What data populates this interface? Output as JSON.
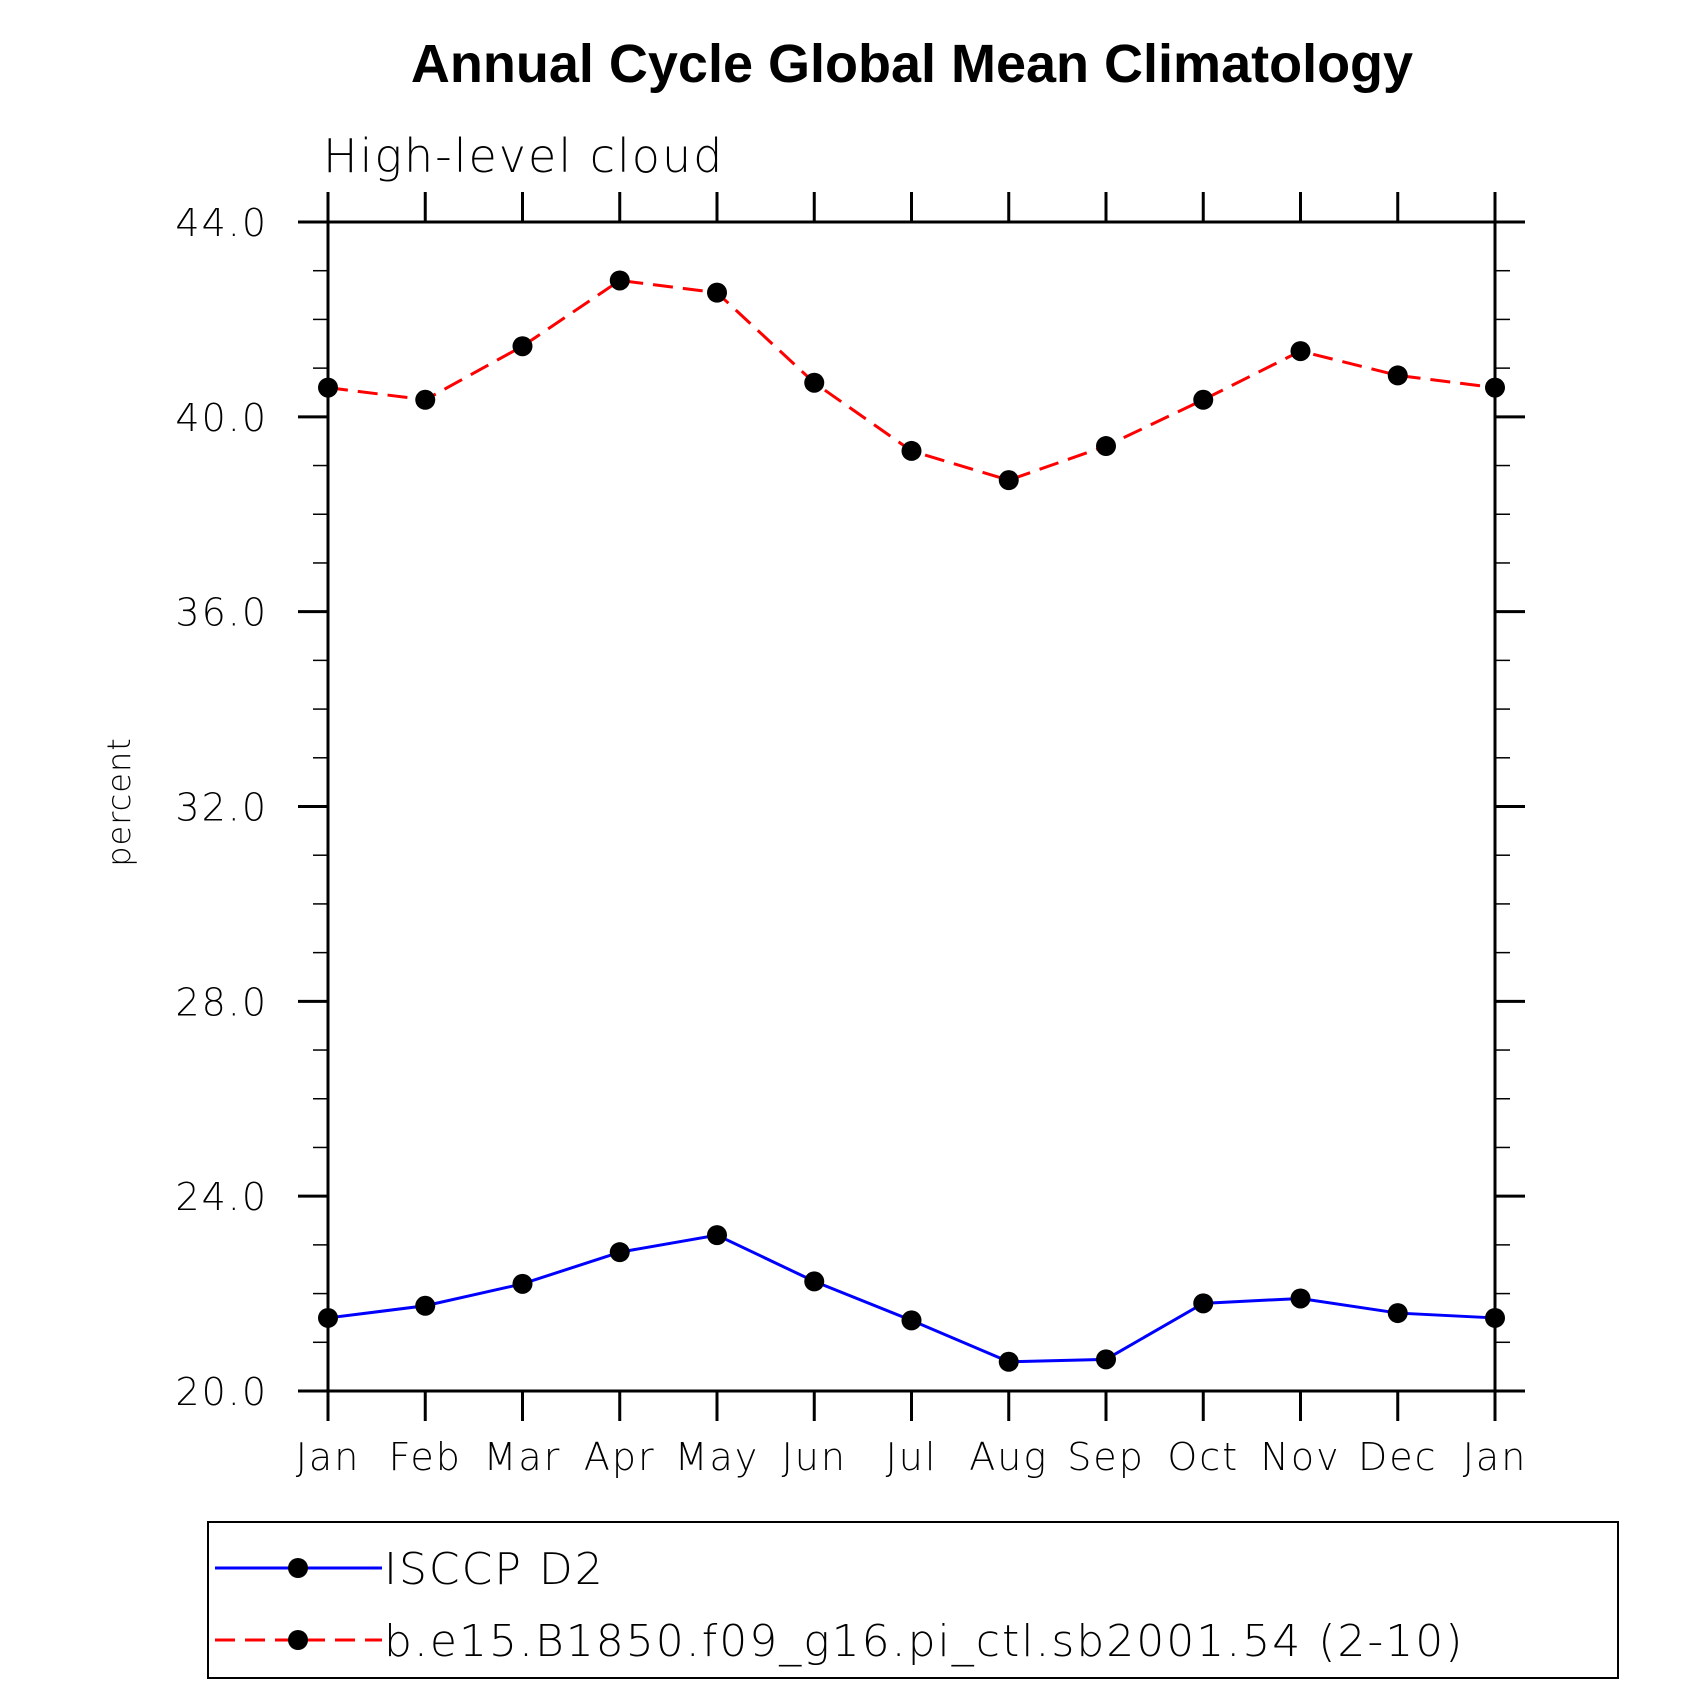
{
  "chart_data": {
    "type": "line",
    "title": "Annual Cycle Global Mean Climatology",
    "subtitle": "High-level cloud",
    "ylabel": "percent",
    "xlabel": "",
    "categories": [
      "Jan",
      "Feb",
      "Mar",
      "Apr",
      "May",
      "Jun",
      "Jul",
      "Aug",
      "Sep",
      "Oct",
      "Nov",
      "Dec",
      "Jan"
    ],
    "ylim": [
      20.0,
      44.0
    ],
    "yticks": [
      "20.0",
      "24.0",
      "28.0",
      "32.0",
      "36.0",
      "40.0",
      "44.0"
    ],
    "grid": false,
    "legend_position": "bottom",
    "series": [
      {
        "name": "ISCCP D2",
        "color": "#0000ff",
        "line_style": "solid",
        "marker": "filled-circle",
        "values": [
          21.5,
          21.75,
          22.2,
          22.85,
          23.2,
          22.25,
          21.45,
          20.6,
          20.65,
          21.8,
          21.9,
          21.6,
          21.5
        ]
      },
      {
        "name": "b.e15.B1850.f09_g16.pi_ctl.sb2001.54 (2-10)",
        "color": "#ff0000",
        "line_style": "dashed",
        "marker": "filled-circle",
        "values": [
          40.6,
          40.35,
          41.45,
          42.8,
          42.55,
          40.7,
          39.3,
          38.7,
          39.4,
          40.35,
          41.35,
          40.85,
          40.6
        ]
      }
    ]
  }
}
